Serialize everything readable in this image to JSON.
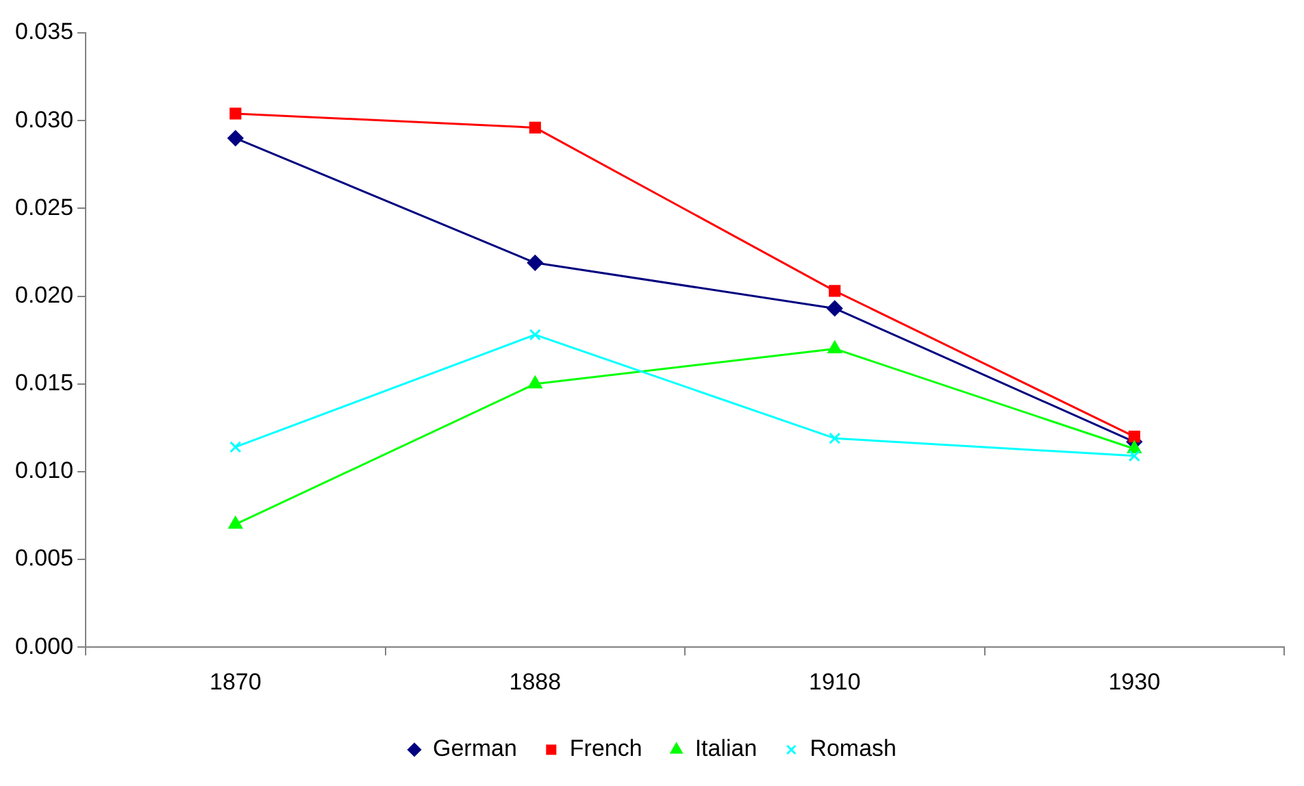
{
  "chart_data": {
    "type": "line",
    "categories": [
      "1870",
      "1888",
      "1910",
      "1930"
    ],
    "series": [
      {
        "name": "German",
        "color": "#000080",
        "marker": "diamond",
        "values": [
          0.029,
          0.0219,
          0.0193,
          0.0117
        ]
      },
      {
        "name": "French",
        "color": "#ff0000",
        "marker": "square",
        "values": [
          0.0304,
          0.0296,
          0.0203,
          0.012
        ]
      },
      {
        "name": "Italian",
        "color": "#00ff00",
        "marker": "triangle",
        "values": [
          0.007,
          0.015,
          0.017,
          0.0113
        ]
      },
      {
        "name": "Romash",
        "color": "#00ffff",
        "marker": "cross",
        "values": [
          0.0114,
          0.0178,
          0.0119,
          0.0109
        ]
      }
    ],
    "ylim": [
      0,
      0.035
    ],
    "yticks": [
      {
        "value": 0,
        "label": "0.000"
      },
      {
        "value": 0.005,
        "label": "0.005"
      },
      {
        "value": 0.01,
        "label": "0.010"
      },
      {
        "value": 0.015,
        "label": "0.015"
      },
      {
        "value": 0.02,
        "label": "0.020"
      },
      {
        "value": 0.025,
        "label": "0.025"
      },
      {
        "value": 0.03,
        "label": "0.030"
      },
      {
        "value": 0.035,
        "label": "0.035"
      }
    ],
    "grid": false,
    "legend": "bottom",
    "line_style": "solid"
  }
}
